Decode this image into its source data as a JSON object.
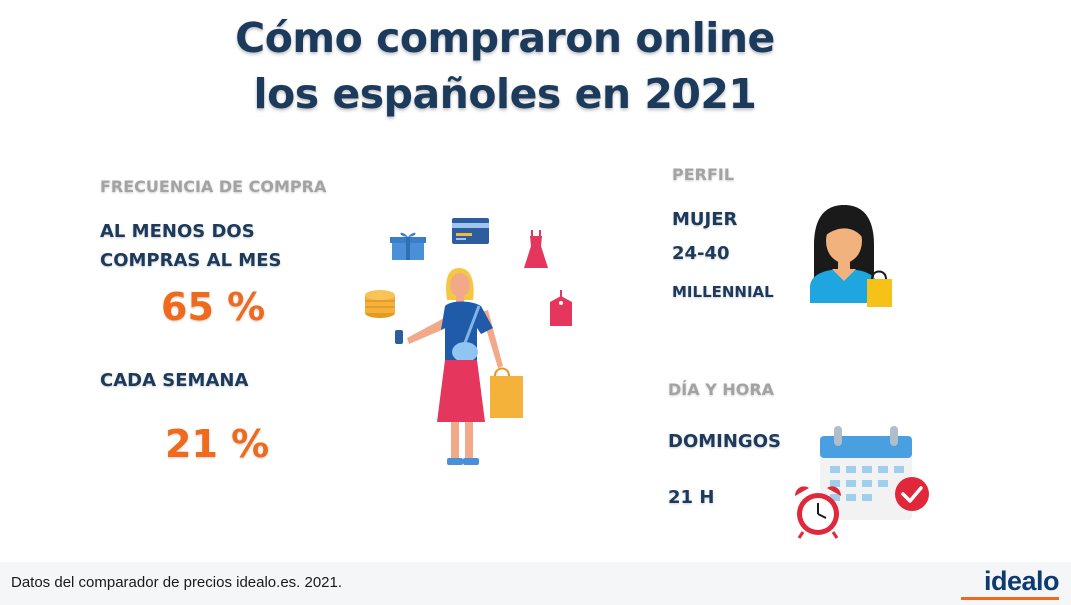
{
  "title": {
    "line1": "Cómo compraron online",
    "line2": "los españoles en 2021"
  },
  "frequency": {
    "heading": "FRECUENCIA DE COMPRA",
    "item1_line1": "AL MENOS DOS",
    "item1_line2": "COMPRAS AL MES",
    "item1_value": "65 %",
    "item2_label": "CADA SEMANA",
    "item2_value": "21 %"
  },
  "profile": {
    "heading": "PERFIL",
    "gender": "MUJER",
    "age": "24-40",
    "generation": "MILLENNIAL"
  },
  "day_time": {
    "heading": "DÍA Y HORA",
    "day": "DOMINGOS",
    "hour": "21 H"
  },
  "footer": {
    "source": "Datos del comparador de precios idealo.es. 2021.",
    "brand": "idealo"
  },
  "colors": {
    "title": "#1b3a5c",
    "heading_grey": "#a3a3a3",
    "accent_orange": "#f06a1e",
    "brand_blue": "#0d3a73"
  },
  "icons": [
    "gift-icon",
    "credit-card-icon",
    "dress-icon",
    "coins-icon",
    "price-tag-icon",
    "shopper-woman-illustration",
    "woman-avatar-icon",
    "calendar-icon",
    "alarm-clock-icon",
    "check-icon"
  ]
}
